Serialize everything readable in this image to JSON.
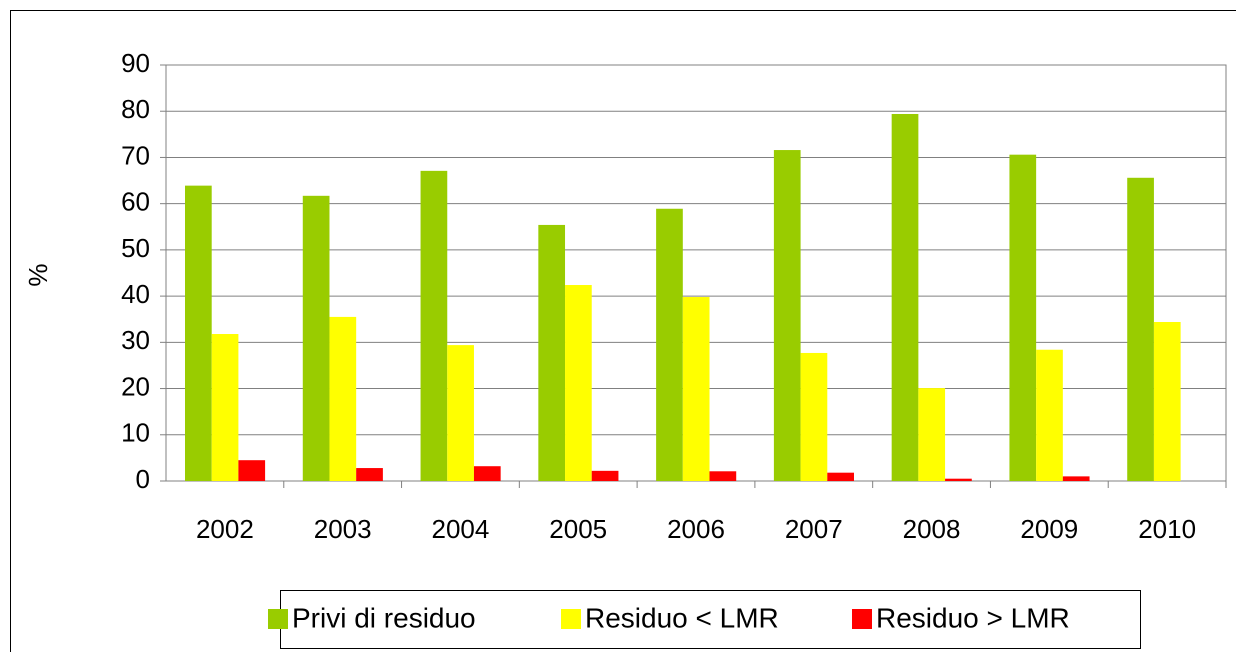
{
  "chart_data": {
    "type": "bar",
    "y_axis_label": "%",
    "categories": [
      "2002",
      "2003",
      "2004",
      "2005",
      "2006",
      "2007",
      "2008",
      "2009",
      "2010"
    ],
    "series": [
      {
        "name": "Privi di residuo",
        "color": "#99cc00",
        "values": [
          63.9,
          61.7,
          67.1,
          55.4,
          58.9,
          71.6,
          79.4,
          70.6,
          65.6
        ]
      },
      {
        "name": "Residuo < LMR",
        "color": "#ffff00",
        "values": [
          31.8,
          35.5,
          29.4,
          42.4,
          39.8,
          27.7,
          20.1,
          28.4,
          34.4
        ]
      },
      {
        "name": "Residuo > LMR",
        "color": "#ff0000",
        "values": [
          4.5,
          2.8,
          3.2,
          2.2,
          2.1,
          1.8,
          0.5,
          1.0,
          0.0
        ]
      }
    ],
    "ylim": [
      0,
      90
    ],
    "yticks": [
      0,
      10,
      20,
      30,
      40,
      50,
      60,
      70,
      80,
      90
    ],
    "grid": true,
    "legend": "bottom"
  }
}
